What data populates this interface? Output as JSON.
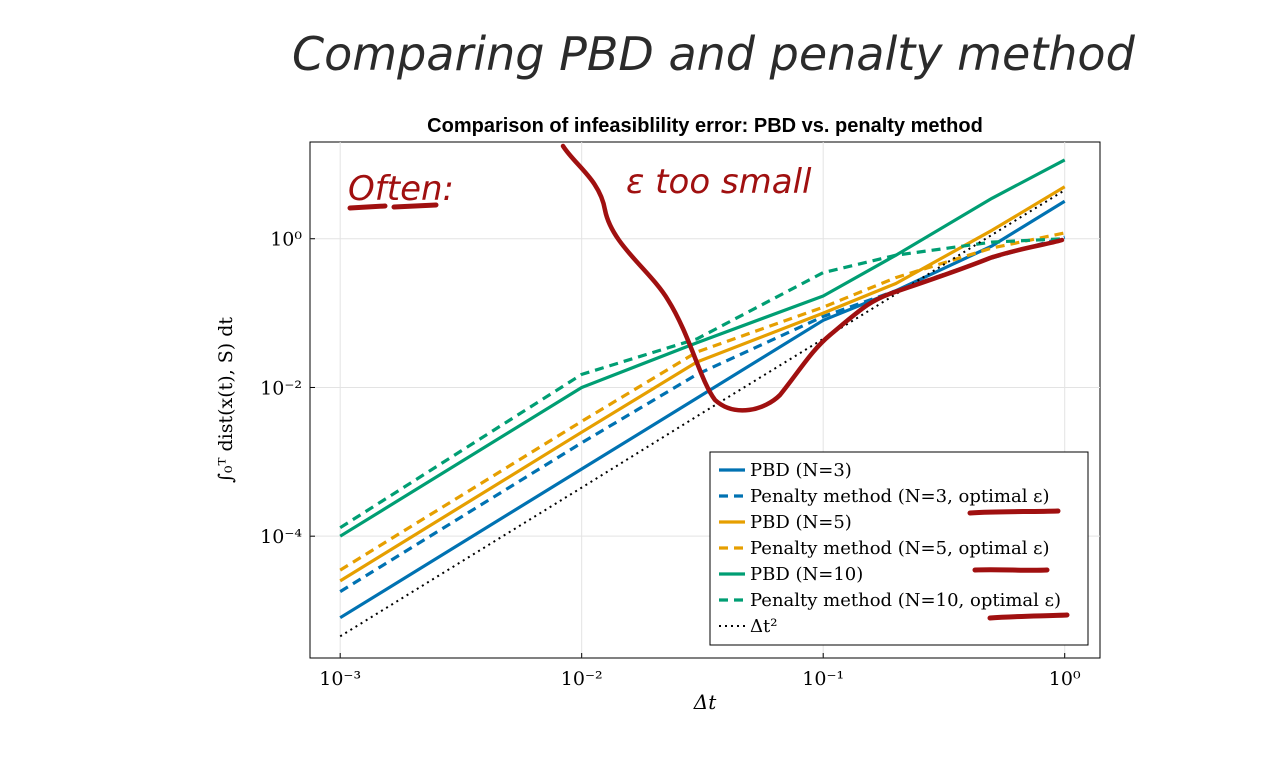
{
  "slide": {
    "handwritten_title": "Comparing PBD and penalty method",
    "annotations": {
      "often": "Often:",
      "epsilon_too_small": "ε too small"
    },
    "annotation_color": "#a01010",
    "ink_color": "#2b2b2b"
  },
  "chart_data": {
    "type": "line",
    "title": "Comparison of infeasiblility error: PBD vs. penalty method",
    "xlabel": "Δt",
    "ylabel": "∫₀ᵀ dist(x(t), S) dt",
    "xscale": "log",
    "yscale": "log",
    "xlim": [
      0.00075,
      1.4
    ],
    "ylim": [
      2.3e-06,
      20
    ],
    "x_ticks": [
      0.001,
      0.01,
      0.1,
      1
    ],
    "x_tick_labels": [
      "10⁻³",
      "10⁻²",
      "10⁻¹",
      "10⁰"
    ],
    "y_ticks": [
      0.0001,
      0.01,
      1
    ],
    "y_tick_labels": [
      "10⁻⁴",
      "10⁻²",
      "10⁰"
    ],
    "grid": true,
    "legend_position": "bottom-right",
    "x": [
      0.001,
      0.01,
      0.03,
      0.1,
      0.2,
      0.5,
      1.0
    ],
    "series": [
      {
        "name": "PBD (N=3)",
        "color": "#0072b2",
        "dash": "solid",
        "values": [
          8e-06,
          0.0008,
          0.0072,
          0.08,
          0.2,
          0.8,
          3.2
        ]
      },
      {
        "name": "Penalty method (N=3, optimal ε)",
        "color": "#0072b2",
        "dash": "dashed",
        "values": [
          1.8e-05,
          0.0018,
          0.015,
          0.09,
          0.2,
          0.55,
          1.05
        ]
      },
      {
        "name": "PBD (N=5)",
        "color": "#e69f00",
        "dash": "solid",
        "values": [
          2.5e-05,
          0.0025,
          0.022,
          0.1,
          0.25,
          1.3,
          5.0
        ]
      },
      {
        "name": "Penalty method (N=5, optimal ε)",
        "color": "#e69f00",
        "dash": "dashed",
        "values": [
          3.5e-05,
          0.0035,
          0.03,
          0.12,
          0.3,
          0.75,
          1.2
        ]
      },
      {
        "name": "PBD (N=10)",
        "color": "#009e73",
        "dash": "solid",
        "values": [
          0.0001,
          0.01,
          0.04,
          0.17,
          0.6,
          3.5,
          11.5
        ]
      },
      {
        "name": "Penalty method (N=10, optimal ε)",
        "color": "#009e73",
        "dash": "dashed",
        "values": [
          0.00013,
          0.015,
          0.045,
          0.35,
          0.6,
          0.9,
          1.0
        ]
      },
      {
        "name": "Δt²",
        "color": "#000000",
        "dash": "dotted",
        "values": [
          4.5e-06,
          0.00045,
          0.0041,
          0.045,
          0.18,
          1.13,
          4.5
        ]
      }
    ]
  }
}
